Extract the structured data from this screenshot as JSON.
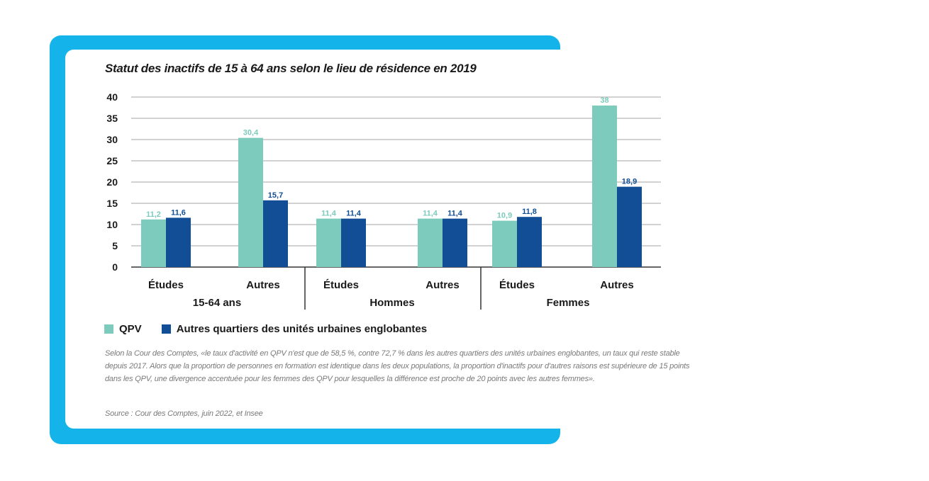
{
  "colors": {
    "frame": "#14b4ea",
    "qpv": "#7ccbbd",
    "autres": "#124e96",
    "grid": "#b8b8b8"
  },
  "chart_data": {
    "type": "bar",
    "title": "Statut des inactifs de 15 à 64 ans selon le lieu de résidence en 2019",
    "ylim": [
      0,
      40
    ],
    "yticks": [
      "0",
      "5",
      "10",
      "15",
      "20",
      "25",
      "30",
      "35",
      "40"
    ],
    "grid": true,
    "categories": [
      "Études",
      "Autres",
      "Études",
      "Autres",
      "Études",
      "Autres"
    ],
    "groups": [
      "15-64 ans",
      "Hommes",
      "Femmes"
    ],
    "series": [
      {
        "name": "QPV",
        "values": [
          11.2,
          30.4,
          11.4,
          11.4,
          10.9,
          38
        ],
        "labels": [
          "11,2",
          "30,4",
          "11,4",
          "11,4",
          "10,9",
          "38"
        ]
      },
      {
        "name": "Autres quartiers des unités urbaines englobantes",
        "values": [
          11.6,
          15.7,
          11.4,
          11.4,
          11.8,
          18.9
        ],
        "labels": [
          "11,6",
          "15,7",
          "11,4",
          "11,4",
          "11,8",
          "18,9"
        ]
      }
    ],
    "legend_position": "bottom-left"
  },
  "note": "Selon la Cour des Comptes, «le taux d'activité en QPV n'est que de 58,5 %, contre 72,7 % dans les autres quartiers des unités urbaines englobantes, un taux qui reste stable depuis 2017. Alors que la proportion de personnes en formation est identique dans les deux populations, la proportion d'inactifs pour d'autres raisons est supérieure de 15 points dans les QPV, une divergence accentuée pour les femmes des QPV pour lesquelles la différence est proche de 20 points avec les autres femmes».",
  "source": "Source : Cour des Comptes, juin 2022, et Insee"
}
